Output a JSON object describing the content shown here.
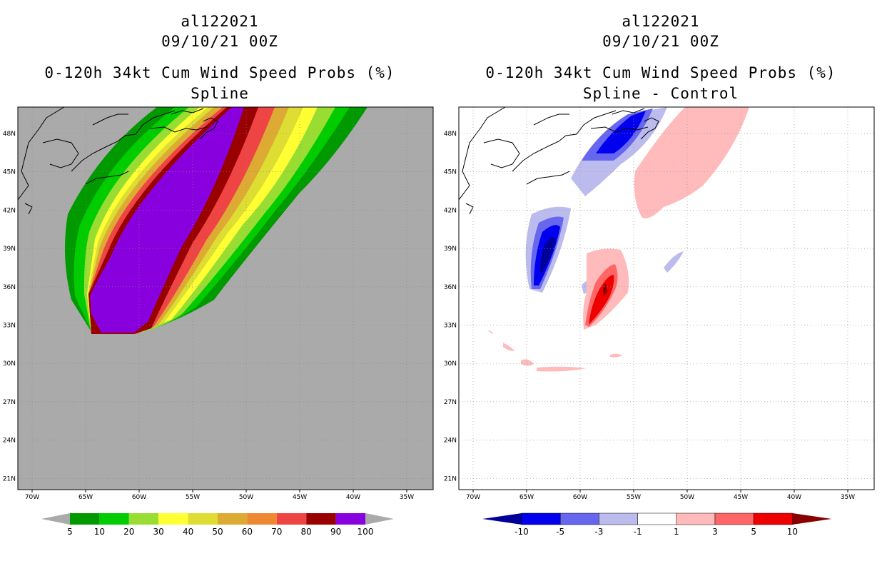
{
  "left_panel": {
    "storm": "al122021",
    "datetime": "09/10/21 00Z",
    "product": "0-120h 34kt Cum Wind Speed Probs (%)",
    "subtitle": "Spline",
    "colorbar": {
      "labels": [
        "5",
        "10",
        "20",
        "30",
        "40",
        "50",
        "60",
        "70",
        "80",
        "90",
        "100"
      ],
      "colors": [
        "#009900",
        "#00cc00",
        "#99dd33",
        "#ffff33",
        "#dddd33",
        "#ddaa33",
        "#ee8833",
        "#ee4444",
        "#990000",
        "#8800dd"
      ]
    }
  },
  "right_panel": {
    "storm": "al122021",
    "datetime": "09/10/21 00Z",
    "product": "0-120h 34kt Cum Wind Speed Probs (%)",
    "subtitle": "Spline - Control",
    "colorbar": {
      "labels": [
        "-10",
        "-5",
        "-3",
        "-1",
        "1",
        "3",
        "5",
        "10"
      ],
      "colors": [
        "#000099",
        "#0000ee",
        "#6666ee",
        "#bbbbee",
        "#ffffff",
        "#ffbbbb",
        "#ff6666",
        "#ee0000",
        "#880000"
      ]
    }
  },
  "axes": {
    "lon_labels": [
      "70W",
      "65W",
      "60W",
      "55W",
      "50W",
      "45W",
      "40W",
      "35W"
    ],
    "lat_labels": [
      "48N",
      "45N",
      "42N",
      "39N",
      "36N",
      "33N",
      "30N",
      "27N",
      "24N",
      "21N"
    ]
  },
  "colors": {
    "land_background": "#aaaaaa",
    "grid": "#888888"
  }
}
